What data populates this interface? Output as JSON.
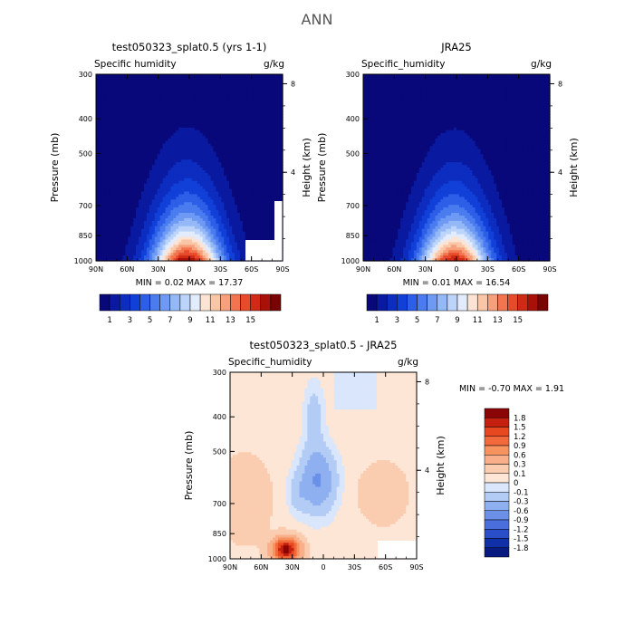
{
  "figure_title": "ANN",
  "panels": [
    {
      "id": "left",
      "title": "test050323_splat0.5 (yrs 1-1)",
      "field_label": "Specific humidity",
      "units": "g/kg",
      "ylabel": "Pressure (mb)",
      "y2label": "Height (km)",
      "stats": "MIN =    0.02    MAX =   17.37"
    },
    {
      "id": "right",
      "title": "JRA25",
      "field_label": "Specific_humidity",
      "units": "g/kg",
      "ylabel": "Pressure (mb)",
      "y2label": "Height (km)",
      "stats": "MIN =    0.01    MAX =   16.54"
    },
    {
      "id": "diff",
      "title": "test050323_splat0.5 - JRA25",
      "field_label": "Specific_humidity",
      "units": "g/kg",
      "ylabel": "Pressure (mb)",
      "y2label": "Height (km)",
      "stats": "MIN =   -0.70    MAX =    1.91"
    }
  ],
  "axes": {
    "x_ticks": [
      "90N",
      "60N",
      "30N",
      "0",
      "30S",
      "60S",
      "90S"
    ],
    "pressure_ticks": [
      "300",
      "400",
      "500",
      "700",
      "850",
      "1000"
    ],
    "height_ticks": [
      "8",
      "4"
    ]
  },
  "colorbars": {
    "abs": {
      "labels": [
        "1",
        "3",
        "5",
        "7",
        "9",
        "11",
        "13",
        "15"
      ],
      "colors": [
        "#08087a",
        "#0a1aa0",
        "#0d2cc0",
        "#1040d8",
        "#2d5ee8",
        "#4a7cf0",
        "#6e9af4",
        "#95b8f7",
        "#bcd4fa",
        "#e2ecfc",
        "#fbe4d4",
        "#f9c7a8",
        "#f6a07c",
        "#f27550",
        "#e84a2c",
        "#d02a14",
        "#a81008",
        "#7a0404"
      ]
    },
    "diff": {
      "labels": [
        "1.8",
        "1.5",
        "1.2",
        "0.9",
        "0.6",
        "0.3",
        "0.1",
        "0",
        "-0.1",
        "-0.3",
        "-0.6",
        "-0.9",
        "-1.2",
        "-1.5",
        "-1.8"
      ],
      "colors": [
        "#8a0505",
        "#c51f10",
        "#e8481f",
        "#f26a3c",
        "#f7935f",
        "#f9b08a",
        "#fbcdb0",
        "#fde6d6",
        "#d9e6fb",
        "#b3ccf6",
        "#8fb0f0",
        "#6a90e8",
        "#4a6fdc",
        "#2a4ec8",
        "#1030a8",
        "#081a80"
      ]
    }
  },
  "chart_data": [
    {
      "type": "heatmap",
      "title": "test050323_splat0.5 (yrs 1-1)",
      "variable": "Specific humidity",
      "units": "g/kg",
      "x": "latitude 90N to 90S",
      "y": "pressure 1000 to 300 mb",
      "min": 0.02,
      "max": 17.37,
      "contour_levels": [
        1,
        2,
        3,
        4,
        5,
        6,
        7,
        8,
        9,
        10,
        11,
        12,
        13,
        14,
        15,
        16,
        17
      ]
    },
    {
      "type": "heatmap",
      "title": "JRA25",
      "variable": "Specific_humidity",
      "units": "g/kg",
      "x": "latitude 90N to 90S",
      "y": "pressure 1000 to 300 mb",
      "min": 0.01,
      "max": 16.54,
      "contour_levels": [
        1,
        2,
        3,
        4,
        5,
        6,
        7,
        8,
        9,
        10,
        11,
        12,
        13,
        14,
        15,
        16,
        17
      ]
    },
    {
      "type": "heatmap",
      "title": "test050323_splat0.5 - JRA25",
      "variable": "Specific_humidity",
      "units": "g/kg",
      "x": "latitude 90N to 90S",
      "y": "pressure 1000 to 300 mb",
      "min": -0.7,
      "max": 1.91,
      "contour_levels": [
        -1.8,
        -1.5,
        -1.2,
        -0.9,
        -0.6,
        -0.3,
        -0.1,
        0,
        0.1,
        0.3,
        0.6,
        0.9,
        1.2,
        1.5,
        1.8
      ]
    }
  ]
}
